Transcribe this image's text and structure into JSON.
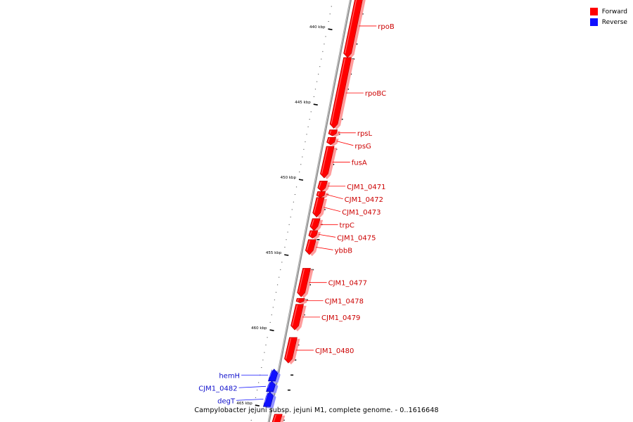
{
  "map": {
    "caption": "Campylobacter jejuni subsp. jejuni M1, complete genome. - 0..1616648",
    "kbp_range": [
      437.7,
      466.4
    ],
    "colors": {
      "forward": "#ff0000",
      "reverse": "#1010ff",
      "backbone": "#888888"
    },
    "legend": [
      {
        "label": "Forward",
        "color": "#ff0000"
      },
      {
        "label": "Reverse",
        "color": "#1010ff"
      }
    ],
    "tick_labels": [
      {
        "kbp": 440,
        "text": "440 kbp"
      },
      {
        "kbp": 445,
        "text": "445 kbp"
      },
      {
        "kbp": 450,
        "text": "450 kbp"
      },
      {
        "kbp": 455,
        "text": "455 kbp"
      },
      {
        "kbp": 460,
        "text": "460 kbp"
      },
      {
        "kbp": 465,
        "text": "465 kbp"
      }
    ],
    "features": [
      {
        "name": "rpoB",
        "strand": "forward",
        "start": 437.7,
        "end": 441.9
      },
      {
        "name": "rpoBC",
        "strand": "forward",
        "start": 441.9,
        "end": 446.6
      },
      {
        "name": "rpsL",
        "strand": "forward",
        "start": 446.7,
        "end": 447.1
      },
      {
        "name": "rpsG",
        "strand": "forward",
        "start": 447.2,
        "end": 447.7
      },
      {
        "name": "fusA",
        "strand": "forward",
        "start": 447.8,
        "end": 449.9
      },
      {
        "name": "CJM1_0471",
        "strand": "forward",
        "start": 450.1,
        "end": 450.8
      },
      {
        "name": "CJM1_0472",
        "strand": "forward",
        "start": 450.8,
        "end": 451.2
      },
      {
        "name": "CJM1_0473",
        "strand": "forward",
        "start": 451.2,
        "end": 452.5
      },
      {
        "name": "trpC",
        "strand": "forward",
        "start": 452.6,
        "end": 453.4
      },
      {
        "name": "CJM1_0475",
        "strand": "forward",
        "start": 453.4,
        "end": 453.9
      },
      {
        "name": "ybbB",
        "strand": "forward",
        "start": 454.0,
        "end": 455.0
      },
      {
        "name": "CJM1_0477",
        "strand": "forward",
        "start": 455.9,
        "end": 457.8
      },
      {
        "name": "CJM1_0478",
        "strand": "forward",
        "start": 457.9,
        "end": 458.2
      },
      {
        "name": "CJM1_0479",
        "strand": "forward",
        "start": 458.3,
        "end": 460.0
      },
      {
        "name": "CJM1_0480",
        "strand": "forward",
        "start": 460.5,
        "end": 462.2
      },
      {
        "name": "hemH",
        "strand": "reverse",
        "start": 462.6,
        "end": 463.4
      },
      {
        "name": "CJM1_0482",
        "strand": "reverse",
        "start": 463.4,
        "end": 464.1
      },
      {
        "name": "degT",
        "strand": "reverse",
        "start": 464.1,
        "end": 465.1
      },
      {
        "name": "",
        "strand": "forward",
        "start": 465.6,
        "end": 466.4
      }
    ]
  }
}
